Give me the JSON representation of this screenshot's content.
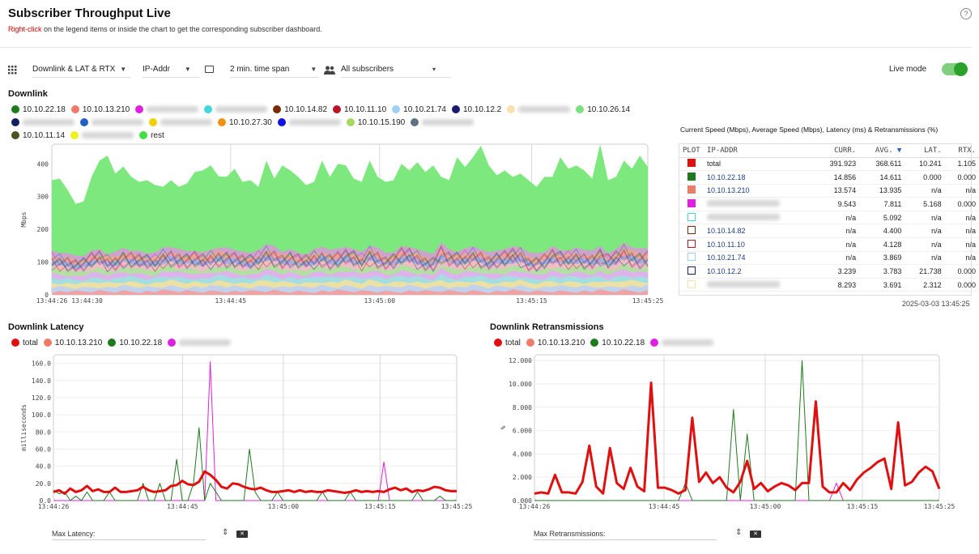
{
  "header": {
    "title": "Subscriber Throughput Live",
    "subtitle_highlight": "Right-click",
    "subtitle_rest": " on the legend items or inside the chart to get the corresponding subscriber dashboard.",
    "help_icon": "?"
  },
  "toolbar": {
    "metric": "Downlink & LAT & RTX",
    "key": "IP-Addr",
    "timespan": "2 min. time span",
    "subscribers": "All subscribers",
    "live_label": "Live mode",
    "live_on": true
  },
  "downlink": {
    "title": "Downlink",
    "ylabel": "Mbps",
    "legend": [
      {
        "label": "10.10.22.18",
        "color": "#1e7a1e"
      },
      {
        "label": "10.10.13.210",
        "color": "#f07a6a"
      },
      {
        "label": "",
        "color": "#e020e0",
        "blur": true
      },
      {
        "label": "",
        "color": "#40d8d8",
        "blur": true
      },
      {
        "label": "10.10.14.82",
        "color": "#7a2a00"
      },
      {
        "label": "10.10.11.10",
        "color": "#b81428"
      },
      {
        "label": "10.10.21.74",
        "color": "#a0d0f0"
      },
      {
        "label": "10.10.12.2",
        "color": "#1a1a70"
      },
      {
        "label": "",
        "color": "#f8e0b0",
        "blur": true
      },
      {
        "label": "10.10.26.14",
        "color": "#7ce07c"
      },
      {
        "label": "",
        "color": "#102060",
        "blur": true
      },
      {
        "label": "",
        "color": "#2060c0",
        "blur": true
      },
      {
        "label": "",
        "color": "#f0d000",
        "blur": true
      },
      {
        "label": "10.10.27.30",
        "color": "#f09010"
      },
      {
        "label": "",
        "color": "#1010e0",
        "blur": true
      },
      {
        "label": "10.10.15.190",
        "color": "#a8d860"
      },
      {
        "label": "",
        "color": "#607080",
        "blur": true
      },
      {
        "label": "10.10.11.14",
        "color": "#505020"
      },
      {
        "label": "",
        "color": "#f0f020",
        "blur": true
      },
      {
        "label": "rest",
        "color": "#44dd44"
      }
    ]
  },
  "table": {
    "caption": "Current Speed (Mbps), Average Speed (Mbps), Latency (ms) & Retransmissions (%)",
    "columns": [
      "PLOT",
      "IP-ADDR",
      "CURR.",
      "AVG.",
      "LAT.",
      "RTX."
    ],
    "rows": [
      {
        "color": "#e01010",
        "fill": true,
        "ip": "total",
        "curr": "391.923",
        "avg": "368.611",
        "lat": "10.241",
        "rtx": "1.105"
      },
      {
        "color": "#1e7a1e",
        "fill": true,
        "ip": "10.10.22.18",
        "curr": "14.856",
        "avg": "14.611",
        "lat": "0.000",
        "rtx": "0.000"
      },
      {
        "color": "#f07a6a",
        "fill": true,
        "ip": "10.10.13.210",
        "curr": "13.574",
        "avg": "13.935",
        "lat": "n/a",
        "rtx": "n/a"
      },
      {
        "color": "#e020e0",
        "fill": true,
        "ip": "",
        "blur": true,
        "curr": "9.543",
        "avg": "7.811",
        "lat": "5.168",
        "rtx": "0.000"
      },
      {
        "color": "#40d8d8",
        "fill": false,
        "ip": "",
        "blur": true,
        "curr": "n/a",
        "avg": "5.092",
        "lat": "n/a",
        "rtx": "n/a"
      },
      {
        "color": "#7a2a00",
        "fill": false,
        "ip": "10.10.14.82",
        "curr": "n/a",
        "avg": "4.400",
        "lat": "n/a",
        "rtx": "n/a"
      },
      {
        "color": "#b81428",
        "fill": false,
        "ip": "10.10.11.10",
        "curr": "n/a",
        "avg": "4.128",
        "lat": "n/a",
        "rtx": "n/a"
      },
      {
        "color": "#a0d0f0",
        "fill": false,
        "ip": "10.10.21.74",
        "curr": "n/a",
        "avg": "3.869",
        "lat": "n/a",
        "rtx": "n/a"
      },
      {
        "color": "#1a1a70",
        "fill": false,
        "ip": "10.10.12.2",
        "curr": "3.239",
        "avg": "3.783",
        "lat": "21.738",
        "rtx": "0.000"
      },
      {
        "color": "#f8e0b0",
        "fill": false,
        "ip": "",
        "blur": true,
        "curr": "8.293",
        "avg": "3.691",
        "lat": "2.312",
        "rtx": "0.000"
      }
    ],
    "timestamp": "2025-03-03 13:45:25"
  },
  "latency": {
    "title": "Downlink Latency",
    "ylabel": "milliseconds",
    "legend": [
      {
        "label": "total",
        "color": "#e01010"
      },
      {
        "label": "10.10.13.210",
        "color": "#f07a6a"
      },
      {
        "label": "10.10.22.18",
        "color": "#1e7a1e"
      },
      {
        "label": "",
        "color": "#e020e0",
        "blur": true
      }
    ],
    "max_label": "Max Latency:"
  },
  "rtx": {
    "title": "Downlink Retransmissions",
    "ylabel": "%",
    "legend": [
      {
        "label": "total",
        "color": "#e01010"
      },
      {
        "label": "10.10.13.210",
        "color": "#f07a6a"
      },
      {
        "label": "10.10.22.18",
        "color": "#1e7a1e"
      },
      {
        "label": "",
        "color": "#e020e0",
        "blur": true
      }
    ],
    "max_label": "Max Retransmissions:"
  },
  "chart_data": [
    {
      "type": "area",
      "title": "Downlink",
      "ylabel": "Mbps",
      "ylim": [
        0,
        460
      ],
      "yticks": [
        0,
        100,
        200,
        300,
        400
      ],
      "xticks": [
        "13:44:26",
        "13:44:30",
        "13:44:45",
        "13:45:00",
        "13:45:15",
        "13:45:25"
      ],
      "total": [
        350,
        355,
        320,
        278,
        285,
        360,
        410,
        425,
        370,
        392,
        360,
        345,
        350,
        335,
        330,
        350,
        330,
        340,
        375,
        380,
        395,
        362,
        360,
        385,
        345,
        350,
        330,
        410,
        355,
        395,
        380,
        360,
        335,
        345,
        410,
        360,
        400,
        395,
        355,
        345,
        410,
        360,
        345,
        350,
        400,
        380,
        405,
        375,
        395,
        360,
        350,
        420,
        390,
        420,
        455,
        395,
        365,
        380,
        360,
        370,
        350,
        330,
        360,
        360,
        420,
        385,
        395,
        380,
        355,
        460,
        350,
        360,
        410,
        385,
        425,
        390
      ],
      "stack_total": [
        135,
        130,
        128,
        120,
        122,
        135,
        140,
        128,
        132,
        145,
        140,
        135,
        128,
        130,
        145,
        150,
        140,
        135,
        138,
        130,
        140,
        150,
        145,
        140,
        132,
        128,
        140,
        155,
        150,
        135,
        140,
        130,
        128,
        140,
        150,
        138,
        142,
        150,
        140,
        132,
        155,
        145,
        130,
        135,
        150,
        148,
        140,
        132,
        128,
        160,
        140,
        135,
        142,
        150,
        145,
        130,
        138,
        140,
        148,
        150,
        130,
        128,
        135,
        150,
        138,
        140,
        145,
        140,
        135,
        150,
        130,
        140,
        160,
        150,
        142,
        145
      ]
    },
    {
      "type": "line",
      "title": "Downlink Latency",
      "ylabel": "milliseconds",
      "ylim": [
        0,
        170
      ],
      "yticks": [
        0.0,
        20.0,
        40.0,
        60.0,
        80.0,
        100.0,
        120.0,
        140.0,
        160.0
      ],
      "xticks": [
        "13:44:26",
        "13:44:45",
        "13:45:00",
        "13:45:15",
        "13:45:25"
      ],
      "series": [
        {
          "name": "total",
          "values": [
            10,
            12,
            8,
            14,
            10,
            12,
            17,
            11,
            13,
            10,
            10,
            15,
            10,
            10,
            11,
            12,
            16,
            12,
            10,
            11,
            12,
            17,
            18,
            23,
            19,
            18,
            22,
            34,
            30,
            24,
            16,
            14,
            20,
            19,
            16,
            14,
            13,
            15,
            12,
            10,
            10,
            11,
            12,
            10,
            12,
            10,
            11,
            10,
            10,
            12,
            11,
            10,
            9,
            10,
            12,
            10,
            11,
            10,
            11,
            10,
            13,
            15,
            12,
            14,
            10,
            12,
            11,
            13,
            16,
            15,
            12,
            11,
            11
          ]
        },
        {
          "name": "10.10.22.18",
          "values": [
            12,
            8,
            10,
            0,
            5,
            0,
            10,
            0,
            0,
            0,
            10,
            0,
            0,
            0,
            0,
            0,
            20,
            0,
            0,
            20,
            0,
            0,
            48,
            0,
            0,
            20,
            85,
            0,
            20,
            10,
            0,
            0,
            0,
            0,
            0,
            60,
            10,
            0,
            0,
            0,
            10,
            0,
            0,
            0,
            0,
            0,
            0,
            0,
            10,
            0,
            0,
            0,
            0,
            10,
            0,
            0,
            0,
            0,
            0,
            0,
            0,
            0,
            0,
            0,
            0,
            10,
            0,
            0,
            0,
            5,
            0,
            0,
            0
          ]
        },
        {
          "name": "",
          "values": [
            0,
            0,
            0,
            0,
            0,
            0,
            0,
            0,
            0,
            0,
            0,
            0,
            0,
            0,
            0,
            0,
            0,
            0,
            0,
            0,
            0,
            0,
            0,
            0,
            0,
            0,
            0,
            0,
            162,
            0,
            0,
            0,
            0,
            0,
            0,
            0,
            0,
            0,
            0,
            0,
            0,
            0,
            0,
            0,
            0,
            0,
            0,
            0,
            0,
            0,
            0,
            0,
            0,
            0,
            0,
            0,
            0,
            0,
            0,
            45,
            0,
            0,
            0,
            0,
            0,
            0,
            0,
            0,
            0,
            0,
            0,
            0,
            0
          ]
        }
      ]
    },
    {
      "type": "line",
      "title": "Downlink Retransmissions",
      "ylabel": "%",
      "ylim": [
        0,
        12.5
      ],
      "yticks": [
        "0.000",
        "2.000",
        "4.000",
        "6.000",
        "8.000",
        "10.000",
        "12.000"
      ],
      "xticks": [
        "13:44:26",
        "13:44:45",
        "13:45:00",
        "13:45:15",
        "13:45:25"
      ],
      "series": [
        {
          "name": "total",
          "values": [
            0.6,
            0.7,
            0.6,
            2.2,
            0.7,
            0.7,
            0.6,
            1.6,
            4.7,
            1.2,
            0.6,
            4.5,
            1.5,
            1.0,
            2.8,
            1.2,
            0.8,
            10.1,
            1.1,
            1.1,
            0.9,
            0.6,
            0.9,
            7.1,
            1.6,
            2.4,
            1.5,
            2.0,
            1.1,
            0.7,
            1.6,
            3.4,
            1.0,
            1.5,
            0.8,
            1.2,
            1.5,
            1.3,
            0.9,
            1.5,
            1.5,
            8.5,
            1.2,
            0.7,
            0.7,
            1.5,
            0.9,
            1.8,
            2.4,
            2.8,
            3.3,
            3.6,
            1.0,
            6.7,
            1.3,
            1.6,
            2.4,
            2.9,
            2.5,
            1.0
          ]
        },
        {
          "name": "10.10.22.18",
          "values": [
            0,
            0,
            0,
            0,
            0,
            0,
            0,
            0,
            0,
            0,
            0,
            0,
            0,
            0,
            0,
            0,
            0,
            0,
            0,
            0,
            0,
            0,
            1.5,
            0,
            0,
            0,
            0,
            0,
            0,
            7.8,
            0,
            5.7,
            0,
            0,
            0,
            0,
            0,
            0,
            0,
            12.0,
            0,
            0,
            0,
            0,
            0,
            0,
            0,
            0,
            0,
            0,
            0,
            0,
            0,
            0,
            0,
            0,
            0,
            0,
            0,
            0
          ]
        },
        {
          "name": "",
          "values": [
            0,
            0,
            0,
            0,
            0,
            0,
            0,
            0,
            0,
            0,
            0,
            0,
            0,
            0,
            0,
            0,
            0,
            0,
            0,
            0,
            0,
            0,
            0,
            0,
            0,
            0,
            0,
            0,
            0,
            0,
            0,
            0,
            0,
            0,
            0,
            0,
            0,
            0,
            0,
            0,
            0,
            0,
            0,
            0,
            1.5,
            0,
            0,
            0,
            0,
            0,
            0,
            0,
            0,
            0,
            0,
            0,
            0,
            0,
            0,
            0
          ]
        }
      ]
    }
  ]
}
